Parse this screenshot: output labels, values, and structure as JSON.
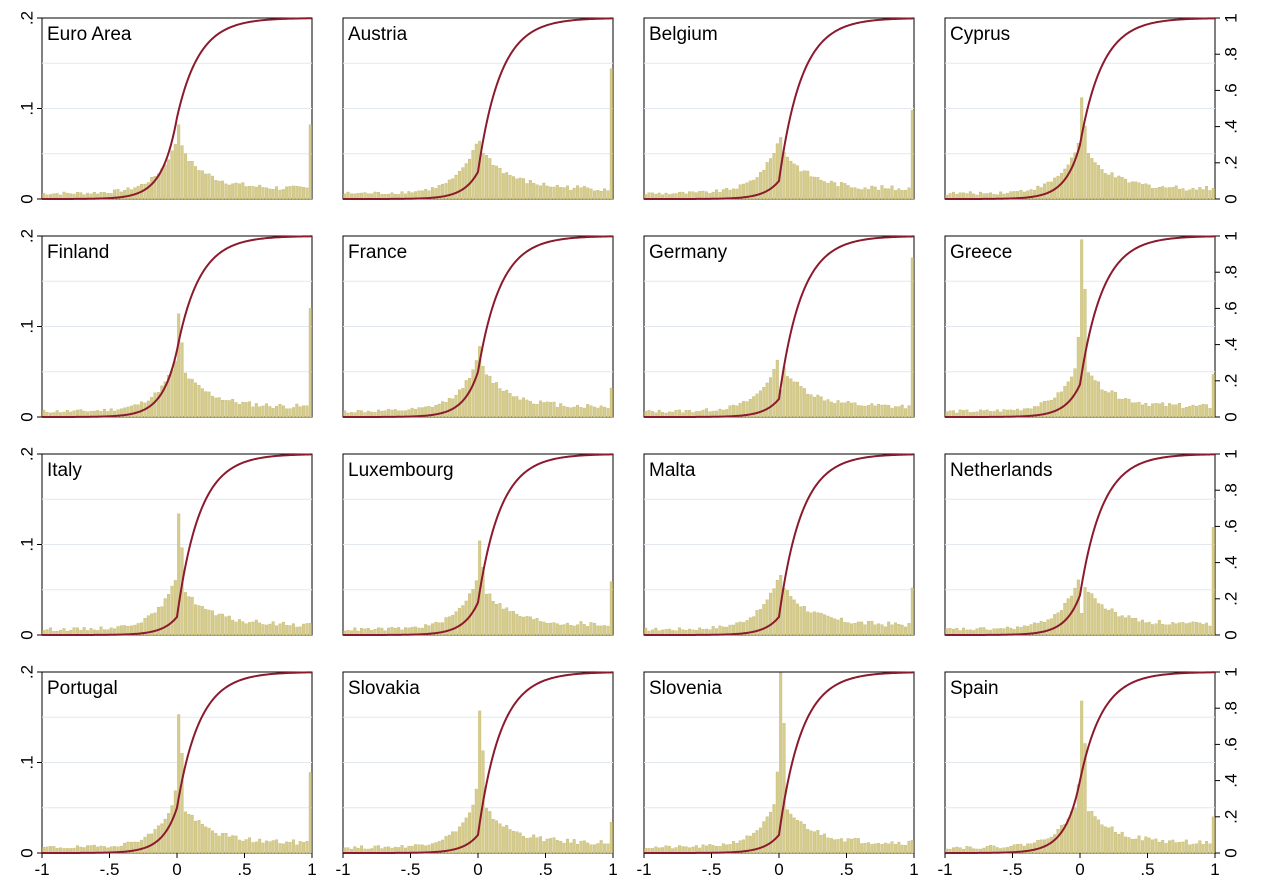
{
  "chart_data": {
    "type": "histogram-with-cdf",
    "x_ticks": [
      "-1",
      "-.5",
      "0",
      ".5",
      "1"
    ],
    "x_tick_values": [
      -1,
      -0.5,
      0,
      0.5,
      1
    ],
    "xlim": [
      -1,
      1
    ],
    "left_y_ticks": [
      "0",
      ".1",
      ".2"
    ],
    "left_y_tick_values": [
      0,
      0.1,
      0.2
    ],
    "left_ylim": [
      0,
      0.2
    ],
    "right_y_ticks": [
      "0",
      ".2",
      ".4",
      ".6",
      ".8",
      "1"
    ],
    "right_y_tick_values": [
      0,
      0.2,
      0.4,
      0.6,
      0.8,
      1
    ],
    "right_ylim": [
      0,
      1
    ],
    "grid": true,
    "colors": {
      "bars": "#d6cc8e",
      "bar_edge": "#c4b872",
      "cdf_line": "#8b1a2e",
      "grid": "#e3e8ef"
    },
    "panels": [
      {
        "title": "Euro Area",
        "spike_at_0": 0.082,
        "spike_at_1": 0.082,
        "cdf_at_0": 0.45
      },
      {
        "title": "Austria",
        "spike_at_0": 0.064,
        "spike_at_1": 0.144,
        "cdf_at_0": 0.15
      },
      {
        "title": "Belgium",
        "spike_at_0": 0.068,
        "spike_at_1": 0.098,
        "cdf_at_0": 0.1
      },
      {
        "title": "Cyprus",
        "spike_at_0": 0.112,
        "spike_at_1": 0.012,
        "cdf_at_0": 0.3
      },
      {
        "title": "Finland",
        "spike_at_0": 0.114,
        "spike_at_1": 0.12,
        "cdf_at_0": 0.37
      },
      {
        "title": "France",
        "spike_at_0": 0.078,
        "spike_at_1": 0.032,
        "cdf_at_0": 0.25
      },
      {
        "title": "Germany",
        "spike_at_0": 0.03,
        "spike_at_1": 0.176,
        "cdf_at_0": 0.1
      },
      {
        "title": "Greece",
        "spike_at_0": 0.196,
        "spike_at_1": 0.047,
        "cdf_at_0": 0.18
      },
      {
        "title": "Italy",
        "spike_at_0": 0.134,
        "spike_at_1": 0.013,
        "cdf_at_0": 0.1
      },
      {
        "title": "Luxembourg",
        "spike_at_0": 0.104,
        "spike_at_1": 0.059,
        "cdf_at_0": 0.18
      },
      {
        "title": "Malta",
        "spike_at_0": 0.066,
        "spike_at_1": 0.052,
        "cdf_at_0": 0.1
      },
      {
        "title": "Netherlands",
        "spike_at_0": 0.024,
        "spike_at_1": 0.119,
        "cdf_at_0": 0.22
      },
      {
        "title": "Portugal",
        "spike_at_0": 0.153,
        "spike_at_1": 0.089,
        "cdf_at_0": 0.25
      },
      {
        "title": "Slovakia",
        "spike_at_0": 0.157,
        "spike_at_1": 0.034,
        "cdf_at_0": 0.1
      },
      {
        "title": "Slovenia",
        "spike_at_0": 0.199,
        "spike_at_1": 0.014,
        "cdf_at_0": 0.1
      },
      {
        "title": "Spain",
        "spike_at_0": 0.168,
        "spike_at_1": 0.04,
        "cdf_at_0": 0.4
      }
    ]
  }
}
